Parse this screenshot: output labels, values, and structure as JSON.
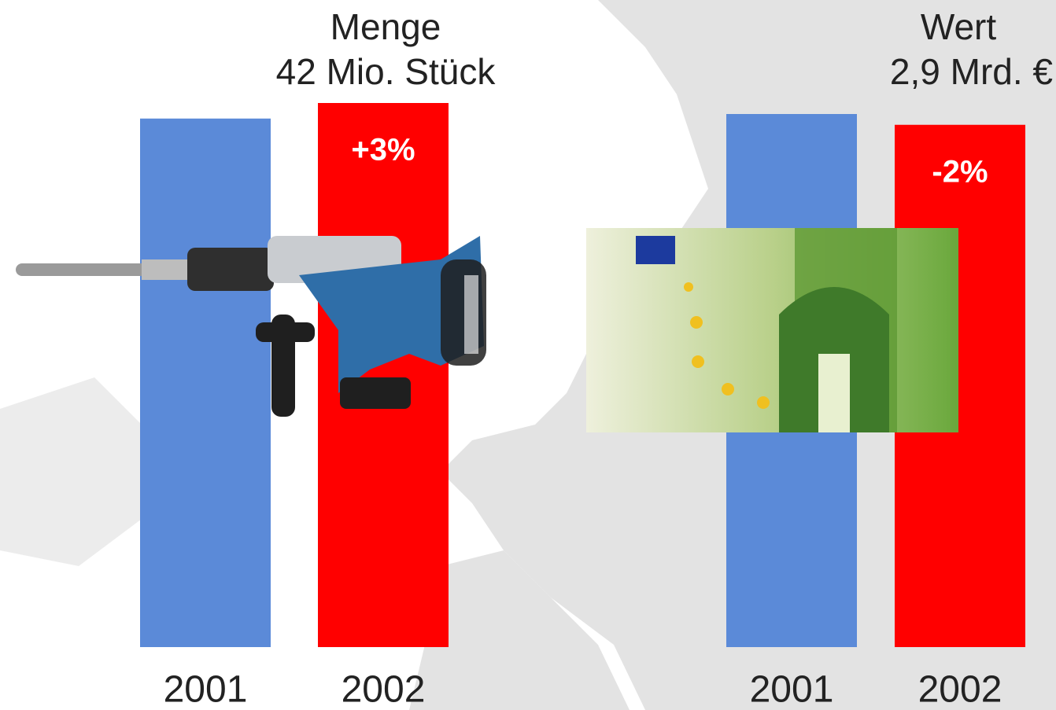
{
  "chart_data": [
    {
      "type": "bar",
      "title": "Menge",
      "subtitle": "42 Mio. Stück",
      "categories": [
        "2001",
        "2002"
      ],
      "values": [
        40.8,
        42
      ],
      "colors": [
        "#5b8ad8",
        "#ff0000"
      ],
      "annotations": [
        {
          "text": "+3%",
          "x": "2002"
        }
      ]
    },
    {
      "type": "bar",
      "title": "Wert",
      "subtitle": "2,9 Mrd. €",
      "categories": [
        "2001",
        "2002"
      ],
      "values": [
        2.96,
        2.9
      ],
      "colors": [
        "#5b8ad8",
        "#ff0000"
      ],
      "annotations": [
        {
          "text": "-2%",
          "x": "2002"
        }
      ]
    }
  ]
}
